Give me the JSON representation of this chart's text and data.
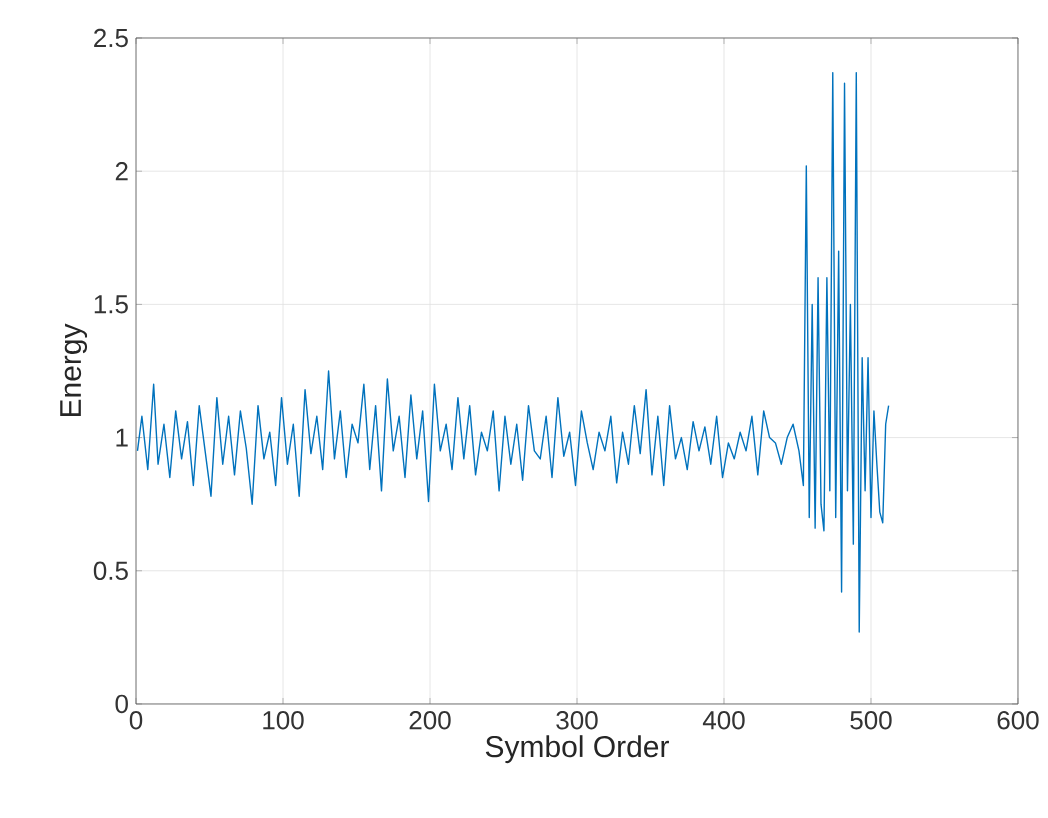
{
  "chart_data": {
    "type": "line",
    "xlabel": "Symbol Order",
    "ylabel": "Energy",
    "xlim": [
      0,
      600
    ],
    "ylim": [
      0,
      2.5
    ],
    "xticks": [
      0,
      100,
      200,
      300,
      400,
      500,
      600
    ],
    "yticks": [
      0,
      0.5,
      1,
      1.5,
      2,
      2.5
    ],
    "grid": true,
    "marker": "none",
    "line_style": "solid",
    "x": [
      1,
      4,
      8,
      12,
      15,
      19,
      23,
      27,
      31,
      35,
      39,
      43,
      47,
      51,
      55,
      59,
      63,
      67,
      71,
      75,
      79,
      83,
      87,
      91,
      95,
      99,
      103,
      107,
      111,
      115,
      119,
      123,
      127,
      131,
      135,
      139,
      143,
      147,
      151,
      155,
      159,
      163,
      167,
      171,
      175,
      179,
      183,
      187,
      191,
      195,
      199,
      203,
      207,
      211,
      215,
      219,
      223,
      227,
      231,
      235,
      239,
      243,
      247,
      251,
      255,
      259,
      263,
      267,
      271,
      275,
      279,
      283,
      287,
      291,
      295,
      299,
      303,
      307,
      311,
      315,
      319,
      323,
      327,
      331,
      335,
      339,
      343,
      347,
      351,
      355,
      359,
      363,
      367,
      371,
      375,
      379,
      383,
      387,
      391,
      395,
      399,
      403,
      407,
      411,
      415,
      419,
      423,
      427,
      431,
      435,
      439,
      443,
      447,
      451,
      454,
      456,
      458,
      460,
      462,
      464,
      466,
      468,
      470,
      472,
      474,
      476,
      478,
      480,
      482,
      484,
      486,
      488,
      490,
      492,
      494,
      496,
      498,
      500,
      502,
      504,
      506,
      508,
      510,
      512
    ],
    "series": [
      {
        "color": "#0072bd",
        "values": [
          0.95,
          1.08,
          0.88,
          1.2,
          0.9,
          1.05,
          0.85,
          1.1,
          0.92,
          1.06,
          0.82,
          1.12,
          0.95,
          0.78,
          1.15,
          0.9,
          1.08,
          0.86,
          1.1,
          0.96,
          0.75,
          1.12,
          0.92,
          1.02,
          0.82,
          1.15,
          0.9,
          1.05,
          0.78,
          1.18,
          0.94,
          1.08,
          0.88,
          1.25,
          0.92,
          1.1,
          0.85,
          1.05,
          0.98,
          1.2,
          0.88,
          1.12,
          0.8,
          1.22,
          0.95,
          1.08,
          0.85,
          1.16,
          0.92,
          1.1,
          0.76,
          1.2,
          0.95,
          1.05,
          0.88,
          1.15,
          0.92,
          1.12,
          0.86,
          1.02,
          0.95,
          1.1,
          0.8,
          1.08,
          0.9,
          1.05,
          0.84,
          1.12,
          0.95,
          0.92,
          1.08,
          0.85,
          1.15,
          0.93,
          1.02,
          0.82,
          1.1,
          0.98,
          0.88,
          1.02,
          0.95,
          1.08,
          0.83,
          1.02,
          0.9,
          1.12,
          0.94,
          1.18,
          0.86,
          1.08,
          0.82,
          1.12,
          0.92,
          1.0,
          0.88,
          1.06,
          0.95,
          1.04,
          0.9,
          1.08,
          0.85,
          0.98,
          0.92,
          1.02,
          0.95,
          1.08,
          0.86,
          1.1,
          1.0,
          0.98,
          0.9,
          1.0,
          1.05,
          0.95,
          0.82,
          2.02,
          0.7,
          1.5,
          0.66,
          1.6,
          0.75,
          0.65,
          1.6,
          0.8,
          2.37,
          0.7,
          1.7,
          0.42,
          2.33,
          0.8,
          1.5,
          0.6,
          2.37,
          0.27,
          1.3,
          0.8,
          1.3,
          0.7,
          1.1,
          0.9,
          0.72,
          0.68,
          1.05,
          1.12
        ]
      }
    ]
  }
}
